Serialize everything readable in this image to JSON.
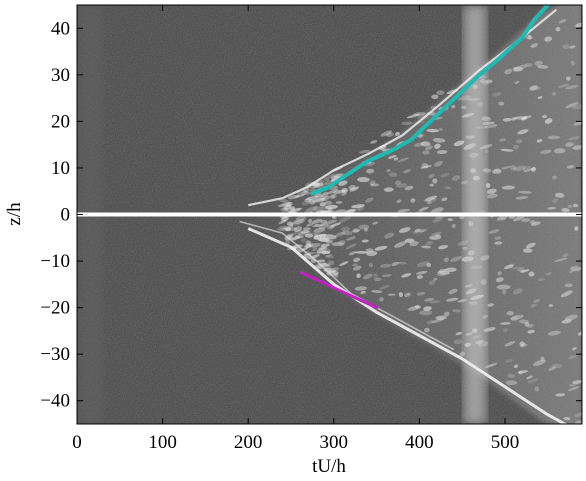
{
  "figure": {
    "xlabel": "tU/h",
    "ylabel": "z/h",
    "xlim": [
      0,
      590
    ],
    "ylim": [
      -45,
      45
    ],
    "x_ticks": [
      0,
      100,
      200,
      300,
      400,
      500
    ],
    "y_ticks": [
      40,
      30,
      20,
      10,
      0,
      -10,
      -20,
      -30,
      -40
    ]
  },
  "overlays": {
    "cyan_trace": {
      "color": "#1fbab4",
      "points": [
        [
          275,
          4.5
        ],
        [
          295,
          6
        ],
        [
          315,
          8.5
        ],
        [
          340,
          11.5
        ],
        [
          365,
          13.5
        ],
        [
          390,
          16
        ],
        [
          410,
          19.5
        ],
        [
          430,
          23
        ],
        [
          450,
          26.5
        ],
        [
          470,
          30
        ],
        [
          490,
          33
        ],
        [
          505,
          35.5
        ],
        [
          520,
          38
        ],
        [
          535,
          42
        ],
        [
          550,
          45
        ]
      ]
    },
    "magenta_line": {
      "color": "#c41fc8",
      "points": [
        [
          262,
          -12.5
        ],
        [
          350,
          -20
        ]
      ]
    }
  },
  "colors": {
    "background": "#4a4a4a",
    "centerline": "#ffffff"
  }
}
